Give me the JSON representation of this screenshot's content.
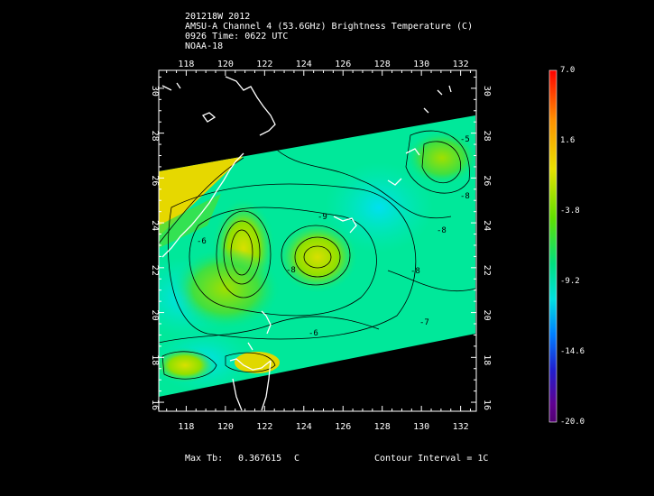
{
  "header": {
    "line1": "201218W 2012",
    "line2": "AMSU-A Channel 4 (53.6GHz) Brightness Temperature (C)",
    "line3": "0926 Time: 0622 UTC",
    "line4": "NOAA-18"
  },
  "map": {
    "lon_ticks": [
      "118",
      "120",
      "122",
      "124",
      "126",
      "128",
      "130",
      "132"
    ],
    "lat_ticks": [
      "16",
      "18",
      "20",
      "22",
      "24",
      "26",
      "28",
      "30"
    ],
    "lon_range": [
      116.6,
      132.8
    ],
    "lat_range": [
      15.6,
      30.8
    ],
    "contour_labels": [
      "-5",
      "-8",
      "-9",
      "-8",
      "-8",
      "-8",
      "-7",
      "-6",
      "-6"
    ]
  },
  "colorbar": {
    "labels": [
      "7.0",
      "1.6",
      "-3.8",
      "-9.2",
      "-14.6",
      "-20.0"
    ],
    "min": -20.0,
    "max": 7.0
  },
  "footer": {
    "max_label": "Max Tb:",
    "max_value": "0.367615",
    "max_unit": "C",
    "contour_interval": "Contour Interval = 1C"
  },
  "colors": {
    "background": "#000000",
    "ocean_field": "#00e89a",
    "warm_field": "#e6d800",
    "cool_field": "#00d0e8",
    "warm_core": "#b0e000"
  }
}
